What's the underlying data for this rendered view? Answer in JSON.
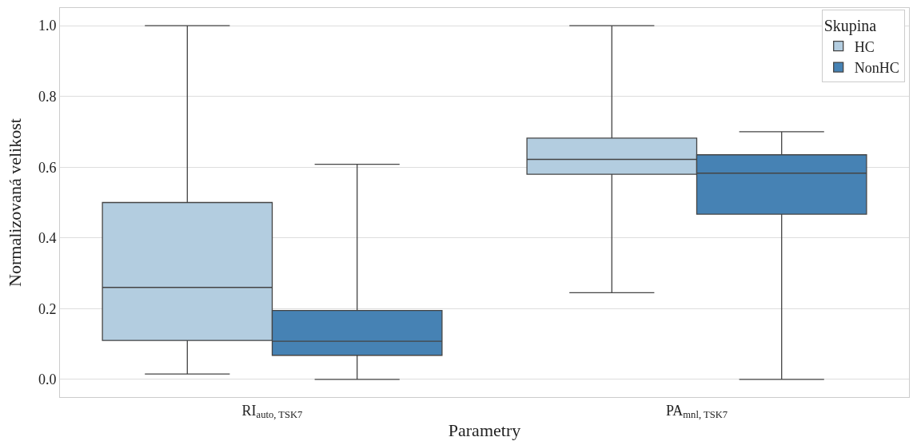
{
  "chart_data": {
    "type": "box",
    "xlabel": "Parametry",
    "ylabel": "Normalizovaná velikost",
    "legend_title": "Skupina",
    "categories": [
      "RI$_{auto, TSK7}$",
      "PA$_{mnl, TSK7}$"
    ],
    "series": [
      {
        "name": "HC",
        "color": "#b3cde0",
        "boxes": [
          {
            "low": 0.015,
            "q1": 0.11,
            "median": 0.26,
            "q3": 0.5,
            "high": 1.0
          },
          {
            "low": 0.245,
            "q1": 0.58,
            "median": 0.622,
            "q3": 0.682,
            "high": 1.0
          }
        ]
      },
      {
        "name": "NonHC",
        "color": "#4682b4",
        "boxes": [
          {
            "low": 0.0,
            "q1": 0.068,
            "median": 0.108,
            "q3": 0.195,
            "high": 0.608
          },
          {
            "low": 0.0,
            "q1": 0.467,
            "median": 0.583,
            "q3": 0.635,
            "high": 0.7
          }
        ]
      }
    ],
    "ylim": [
      -0.05,
      1.05
    ],
    "yticks": [
      {
        "value": 0,
        "label": "0.0"
      },
      {
        "value": 0.2,
        "label": "0.2"
      },
      {
        "value": 0.4,
        "label": "0.4"
      },
      {
        "value": 0.6,
        "label": "0.6"
      },
      {
        "value": 0.8,
        "label": "0.8"
      },
      {
        "value": 1,
        "label": "1.0"
      }
    ],
    "grid": "y",
    "legend": "top right"
  }
}
